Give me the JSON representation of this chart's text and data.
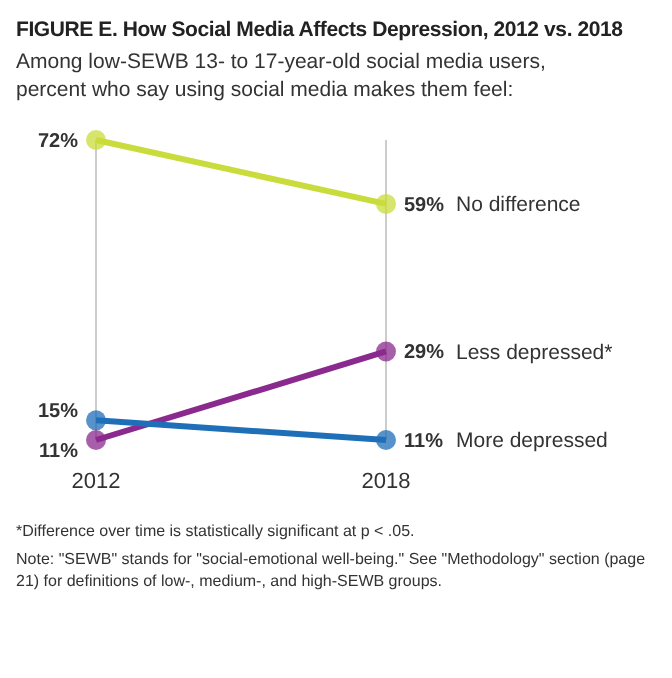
{
  "chart_data": {
    "type": "line",
    "title": "FIGURE E. How Social Media Affects Depression, 2012 vs. 2018",
    "subtitle": "Among low-SEWB 13- to 17-year-old social media users, percent who say using social media makes them feel:",
    "categories": [
      "2012",
      "2018"
    ],
    "series": [
      {
        "name": "No difference",
        "color": "#c9dc3c",
        "values": [
          72,
          59
        ],
        "value_labels": [
          "72%",
          "59%"
        ]
      },
      {
        "name": "Less depressed*",
        "color": "#8b2a8e",
        "values": [
          11,
          29
        ],
        "value_labels": [
          "11%",
          "29%"
        ]
      },
      {
        "name": "More depressed",
        "color": "#1f6fb8",
        "values": [
          15,
          11
        ],
        "value_labels": [
          "15%",
          "11%"
        ]
      }
    ],
    "grid": "x",
    "legend": false,
    "marker": "circle",
    "line_style": "solid",
    "annotations": [
      "*Difference over time is statistically significant at p < .05.",
      "Note: \"SEWB\" stands for \"social-emotional well-being.\" See \"Methodology\" section (page 21) for definitions of low-, medium-, and high-SEWB groups."
    ]
  }
}
